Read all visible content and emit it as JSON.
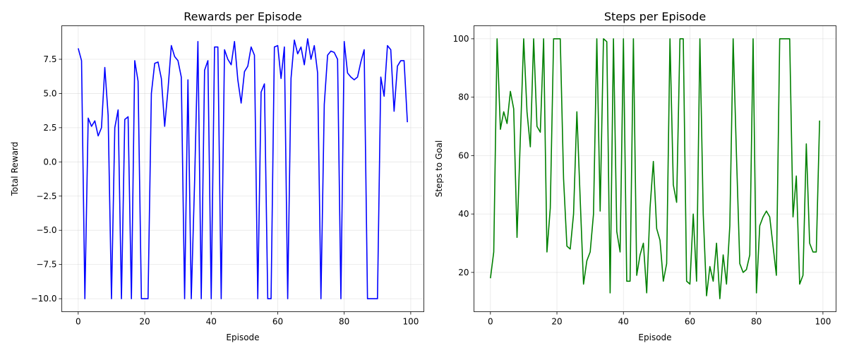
{
  "chart_data": [
    {
      "type": "line",
      "title": "Rewards per Episode",
      "xlabel": "Episode",
      "ylabel": "Total Reward",
      "xlim": [
        -4.95,
        103.95
      ],
      "ylim": [
        -10.95,
        9.95
      ],
      "xticks": [
        0,
        20,
        40,
        60,
        80,
        100
      ],
      "yticks": [
        -10.0,
        -7.5,
        -5.0,
        -2.5,
        0.0,
        2.5,
        5.0,
        7.5
      ],
      "xtick_labels": [
        "0",
        "20",
        "40",
        "60",
        "80",
        "100"
      ],
      "ytick_labels": [
        "−10.0",
        "−7.5",
        "−5.0",
        "−2.5",
        "0.0",
        "2.5",
        "5.0",
        "7.5"
      ],
      "grid": true,
      "color": "#0000ff",
      "x": [
        0,
        1,
        2,
        3,
        4,
        5,
        6,
        7,
        8,
        9,
        10,
        11,
        12,
        13,
        14,
        15,
        16,
        17,
        18,
        19,
        20,
        21,
        22,
        23,
        24,
        25,
        26,
        27,
        28,
        29,
        30,
        31,
        32,
        33,
        34,
        35,
        36,
        37,
        38,
        39,
        40,
        41,
        42,
        43,
        44,
        45,
        46,
        47,
        48,
        49,
        50,
        51,
        52,
        53,
        54,
        55,
        56,
        57,
        58,
        59,
        60,
        61,
        62,
        63,
        64,
        65,
        66,
        67,
        68,
        69,
        70,
        71,
        72,
        73,
        74,
        75,
        76,
        77,
        78,
        79,
        80,
        81,
        82,
        83,
        84,
        85,
        86,
        87,
        88,
        89,
        90,
        91,
        92,
        93,
        94,
        95,
        96,
        97,
        98,
        99
      ],
      "y": [
        8.3,
        7.4,
        -10,
        3.2,
        2.6,
        3.0,
        1.9,
        2.5,
        6.9,
        3.4,
        -10,
        2.5,
        3.8,
        -10,
        3.1,
        3.3,
        -10,
        7.4,
        5.9,
        -10,
        -10,
        -10,
        5.0,
        7.2,
        7.3,
        6.1,
        2.6,
        5.3,
        8.5,
        7.7,
        7.4,
        6.2,
        -10,
        6.0,
        -10,
        -1.5,
        8.8,
        -10,
        6.7,
        7.4,
        -10,
        8.4,
        8.4,
        -10,
        8.2,
        7.5,
        7.1,
        8.8,
        6.0,
        4.3,
        6.6,
        7.0,
        8.4,
        7.8,
        -10,
        5.1,
        5.7,
        -10,
        -10,
        8.4,
        8.5,
        6.1,
        8.4,
        -10,
        6.1,
        8.9,
        7.9,
        8.4,
        7.1,
        9.0,
        7.5,
        8.5,
        6.5,
        -10,
        4.2,
        7.8,
        8.1,
        8.0,
        7.5,
        -10,
        8.8,
        6.5,
        6.2,
        6.0,
        6.2,
        7.3,
        8.2,
        -10,
        -10,
        -10,
        -10,
        6.2,
        4.8,
        8.5,
        8.2,
        3.7,
        7.0,
        7.4,
        7.4,
        2.9
      ]
    },
    {
      "type": "line",
      "title": "Steps per Episode",
      "xlabel": "Episode",
      "ylabel": "Steps to Goal",
      "xlim": [
        -4.95,
        103.95
      ],
      "ylim": [
        6.55,
        104.45
      ],
      "xticks": [
        0,
        20,
        40,
        60,
        80,
        100
      ],
      "yticks": [
        20,
        40,
        60,
        80,
        100
      ],
      "xtick_labels": [
        "0",
        "20",
        "40",
        "60",
        "80",
        "100"
      ],
      "ytick_labels": [
        "20",
        "40",
        "60",
        "80",
        "100"
      ],
      "grid": true,
      "color": "#008000",
      "x": [
        0,
        1,
        2,
        3,
        4,
        5,
        6,
        7,
        8,
        9,
        10,
        11,
        12,
        13,
        14,
        15,
        16,
        17,
        18,
        19,
        20,
        21,
        22,
        23,
        24,
        25,
        26,
        27,
        28,
        29,
        30,
        31,
        32,
        33,
        34,
        35,
        36,
        37,
        38,
        39,
        40,
        41,
        42,
        43,
        44,
        45,
        46,
        47,
        48,
        49,
        50,
        51,
        52,
        53,
        54,
        55,
        56,
        57,
        58,
        59,
        60,
        61,
        62,
        63,
        64,
        65,
        66,
        67,
        68,
        69,
        70,
        71,
        72,
        73,
        74,
        75,
        76,
        77,
        78,
        79,
        80,
        81,
        82,
        83,
        84,
        85,
        86,
        87,
        88,
        89,
        90,
        91,
        92,
        93,
        94,
        95,
        96,
        97,
        98,
        99
      ],
      "y": [
        18,
        27,
        100,
        69,
        75,
        71,
        82,
        76,
        32,
        66,
        100,
        75,
        63,
        100,
        70,
        68,
        100,
        27,
        42,
        100,
        100,
        100,
        52,
        29,
        28,
        40,
        75,
        45,
        16,
        24,
        27,
        40,
        100,
        41,
        100,
        99,
        13,
        100,
        34,
        27,
        100,
        17,
        17,
        100,
        19,
        26,
        30,
        13,
        42,
        58,
        35,
        31,
        17,
        23,
        100,
        50,
        44,
        100,
        100,
        17,
        16,
        40,
        17,
        100,
        40,
        12,
        22,
        17,
        30,
        11,
        26,
        16,
        36,
        100,
        60,
        23,
        20,
        21,
        26,
        100,
        13,
        36,
        39,
        41,
        39,
        29,
        19,
        100,
        100,
        100,
        100,
        39,
        53,
        16,
        19,
        64,
        30,
        27,
        27,
        72
      ]
    }
  ]
}
